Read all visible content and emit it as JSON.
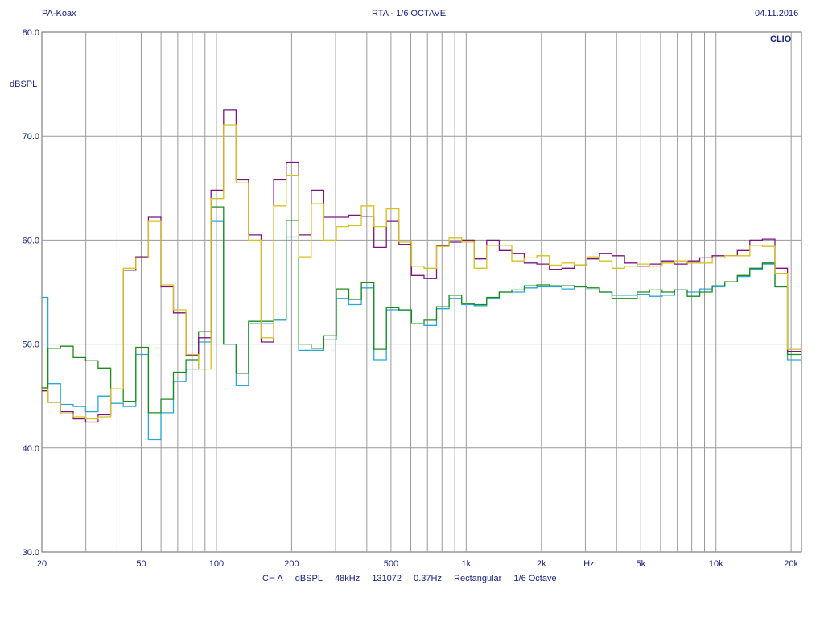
{
  "header": {
    "left": "PA-Koax",
    "center": "RTA - 1/6 OCTAVE",
    "right": "04.11.2016"
  },
  "brand": "CLIO",
  "footer": [
    "CH A",
    "dBSPL",
    "48kHz",
    "131072",
    "0.37Hz",
    "Rectangular",
    "1/6 Octave"
  ],
  "chart_data": {
    "type": "line",
    "title": "RTA - 1/6 OCTAVE",
    "ylabel": "dBSPL",
    "xlabel": "Hz",
    "xscale": "log",
    "xlim": [
      20,
      22000
    ],
    "ylim": [
      30,
      80
    ],
    "y_ticks": [
      "30.0",
      "40.0",
      "50.0",
      "60.0",
      "70.0",
      "80.0"
    ],
    "x_ticks": [
      "20",
      "50",
      "100",
      "200",
      "500",
      "1k",
      "2k",
      "Hz",
      "5k",
      "10k",
      "20k"
    ],
    "grid": true,
    "step": true,
    "x": [
      20,
      22.4,
      25.2,
      28.3,
      31.7,
      35.6,
      40,
      44.9,
      50.4,
      56.6,
      63.5,
      71.3,
      80,
      89.8,
      100.8,
      113.1,
      127,
      142.5,
      160,
      179.6,
      201.6,
      226.3,
      254,
      285.1,
      320,
      359.2,
      403.2,
      452.5,
      508,
      570.2,
      640,
      718.4,
      806.3,
      905,
      1016,
      1140,
      1280,
      1437,
      1613,
      1810,
      2032,
      2281,
      2560,
      2874,
      3225,
      3620,
      4064,
      4561,
      5120,
      5747,
      6451,
      7241,
      8127,
      9123,
      10240,
      11494,
      12902,
      14482,
      16255,
      18246,
      20480
    ],
    "series": [
      {
        "color": "#2aa6d6",
        "values": [
          54.5,
          46.2,
          44.2,
          44.0,
          43.5,
          45.0,
          44.3,
          44.0,
          49.0,
          40.8,
          43.4,
          46.4,
          47.6,
          50.2,
          61.8,
          50.0,
          46.0,
          52.0,
          52.0,
          52.3,
          60.3,
          49.4,
          49.4,
          50.4,
          54.4,
          53.8,
          55.4,
          48.5,
          53.3,
          53.2,
          52.0,
          51.8,
          53.4,
          54.4,
          53.8,
          53.7,
          54.4,
          55.0,
          55.0,
          55.4,
          55.5,
          55.5,
          55.3,
          55.5,
          55.2,
          55.0,
          54.7,
          54.7,
          54.8,
          54.6,
          54.7,
          55.2,
          55.0,
          55.3,
          55.5,
          56.0,
          56.5,
          57.2,
          57.7,
          55.5,
          48.5
        ]
      },
      {
        "color": "#1e8a1e",
        "values": [
          45.8,
          49.6,
          49.8,
          48.7,
          48.4,
          47.7,
          45.7,
          44.5,
          49.7,
          43.4,
          44.7,
          47.3,
          48.5,
          51.2,
          63.2,
          50.0,
          47.2,
          52.2,
          52.2,
          52.4,
          61.9,
          50.0,
          49.6,
          50.8,
          55.3,
          54.3,
          55.9,
          49.5,
          53.5,
          53.3,
          52.0,
          52.3,
          53.6,
          54.7,
          53.9,
          53.8,
          54.5,
          55.0,
          55.2,
          55.6,
          55.7,
          55.6,
          55.6,
          55.5,
          55.4,
          55.0,
          54.4,
          54.4,
          55.0,
          55.2,
          55.0,
          55.2,
          54.6,
          55.0,
          55.6,
          56.0,
          56.6,
          57.3,
          57.8,
          55.5,
          49.0
        ]
      },
      {
        "color": "#7a1580",
        "values": [
          45.5,
          44.4,
          43.5,
          42.8,
          42.5,
          43.2,
          45.7,
          57.1,
          58.4,
          62.2,
          55.5,
          53.0,
          48.9,
          50.6,
          64.8,
          72.5,
          65.8,
          60.5,
          50.2,
          65.8,
          67.5,
          60.5,
          64.8,
          62.2,
          62.2,
          62.4,
          62.3,
          59.3,
          61.8,
          59.6,
          56.6,
          56.3,
          59.5,
          59.8,
          60.0,
          58.2,
          60.0,
          59.0,
          58.7,
          57.8,
          57.7,
          57.2,
          57.3,
          57.6,
          58.2,
          58.7,
          58.5,
          57.8,
          57.5,
          57.7,
          58.0,
          57.7,
          58.0,
          58.3,
          58.5,
          58.5,
          59.0,
          60.0,
          60.1,
          57.3,
          49.3
        ]
      },
      {
        "color": "#d4c220",
        "values": [
          45.7,
          44.4,
          43.3,
          43.0,
          42.8,
          43.0,
          45.7,
          57.3,
          58.3,
          61.8,
          55.7,
          53.3,
          49.0,
          47.6,
          64.0,
          71.1,
          65.5,
          60.0,
          50.6,
          63.3,
          66.2,
          58.4,
          63.5,
          60.0,
          61.3,
          61.4,
          63.3,
          61.3,
          63.0,
          59.8,
          57.5,
          57.3,
          59.4,
          60.2,
          59.8,
          57.3,
          59.5,
          59.5,
          58.0,
          58.3,
          58.5,
          57.6,
          57.8,
          57.6,
          58.4,
          58.0,
          57.3,
          57.5,
          57.7,
          57.5,
          57.8,
          58.0,
          57.8,
          57.8,
          58.3,
          58.5,
          58.5,
          59.5,
          59.4,
          56.8,
          49.5
        ]
      }
    ]
  }
}
